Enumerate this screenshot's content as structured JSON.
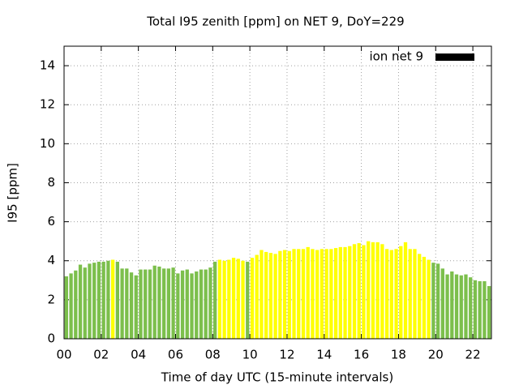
{
  "chart_data": {
    "type": "bar",
    "title": "Total I95 zenith [ppm] on NET 9, DoY=229",
    "xlabel": "Time of day UTC (15-minute intervals)",
    "ylabel": "I95 [ppm]",
    "legend": "top-right",
    "grid": true,
    "xlim": [
      0,
      23
    ],
    "ylim": [
      0,
      15
    ],
    "xticks": [
      {
        "value": 0,
        "label": "00"
      },
      {
        "value": 2,
        "label": "02"
      },
      {
        "value": 4,
        "label": "04"
      },
      {
        "value": 6,
        "label": "06"
      },
      {
        "value": 8,
        "label": "08"
      },
      10,
      12,
      14,
      16,
      18,
      20,
      22
    ],
    "yticks": [
      0,
      2,
      4,
      6,
      8,
      10,
      12,
      14
    ],
    "x": [
      0,
      0.25,
      0.5,
      0.75,
      1,
      1.25,
      1.5,
      1.75,
      2,
      2.25,
      2.5,
      2.75,
      3,
      3.25,
      3.5,
      3.75,
      4,
      4.25,
      4.5,
      4.75,
      5,
      5.25,
      5.5,
      5.75,
      6,
      6.25,
      6.5,
      6.75,
      7,
      7.25,
      7.5,
      7.75,
      8,
      8.25,
      8.5,
      8.75,
      9,
      9.25,
      9.5,
      9.75,
      10,
      10.25,
      10.5,
      10.75,
      11,
      11.25,
      11.5,
      11.75,
      12,
      12.25,
      12.5,
      12.75,
      13,
      13.25,
      13.5,
      13.75,
      14,
      14.25,
      14.5,
      14.75,
      15,
      15.25,
      15.5,
      15.75,
      16,
      16.25,
      16.5,
      16.75,
      17,
      17.25,
      17.5,
      17.75,
      18,
      18.25,
      18.5,
      18.75,
      19,
      19.25,
      19.5,
      19.75,
      20,
      20.25,
      20.5,
      20.75,
      21,
      21.25,
      21.5,
      21.75,
      22,
      22.25,
      22.5,
      22.75
    ],
    "series": [
      {
        "name": "ion net 9",
        "color": "#000000",
        "values": [
          3.2,
          3.35,
          3.5,
          3.8,
          3.65,
          3.85,
          3.9,
          3.95,
          3.95,
          4.0,
          4.05,
          3.95,
          3.6,
          3.6,
          3.4,
          3.25,
          3.55,
          3.55,
          3.55,
          3.75,
          3.7,
          3.6,
          3.6,
          3.65,
          3.35,
          3.5,
          3.55,
          3.35,
          3.45,
          3.55,
          3.55,
          3.65,
          3.95,
          4.05,
          4.0,
          4.05,
          4.15,
          4.1,
          4.0,
          3.95,
          4.15,
          4.3,
          4.55,
          4.45,
          4.4,
          4.35,
          4.5,
          4.55,
          4.5,
          4.6,
          4.6,
          4.6,
          4.7,
          4.6,
          4.55,
          4.6,
          4.6,
          4.6,
          4.65,
          4.7,
          4.7,
          4.75,
          4.85,
          4.9,
          4.8,
          5.0,
          4.95,
          4.95,
          4.85,
          4.6,
          4.55,
          4.6,
          4.75,
          4.95,
          4.6,
          4.6,
          4.35,
          4.2,
          4.05,
          3.9,
          3.85,
          3.6,
          3.3,
          3.45,
          3.3,
          3.25,
          3.3,
          3.15,
          3.0,
          2.95,
          2.95,
          2.7
        ],
        "colors": [
          "#7cbf4c",
          "#7cbf4c",
          "#7cbf4c",
          "#7cbf4c",
          "#7cbf4c",
          "#7cbf4c",
          "#7cbf4c",
          "#7cbf4c",
          "#7cbf4c",
          "#7cbf4c",
          "#ffff00",
          "#7cbf4c",
          "#7cbf4c",
          "#7cbf4c",
          "#7cbf4c",
          "#7cbf4c",
          "#7cbf4c",
          "#7cbf4c",
          "#7cbf4c",
          "#7cbf4c",
          "#7cbf4c",
          "#7cbf4c",
          "#7cbf4c",
          "#7cbf4c",
          "#7cbf4c",
          "#7cbf4c",
          "#7cbf4c",
          "#7cbf4c",
          "#7cbf4c",
          "#7cbf4c",
          "#7cbf4c",
          "#7cbf4c",
          "#7cbf4c",
          "#ffff00",
          "#ffff00",
          "#ffff00",
          "#ffff00",
          "#ffff00",
          "#ffff00",
          "#7cbf4c",
          "#ffff00",
          "#ffff00",
          "#ffff00",
          "#ffff00",
          "#ffff00",
          "#ffff00",
          "#ffff00",
          "#ffff00",
          "#ffff00",
          "#ffff00",
          "#ffff00",
          "#ffff00",
          "#ffff00",
          "#ffff00",
          "#ffff00",
          "#ffff00",
          "#ffff00",
          "#ffff00",
          "#ffff00",
          "#ffff00",
          "#ffff00",
          "#ffff00",
          "#ffff00",
          "#ffff00",
          "#ffff00",
          "#ffff00",
          "#ffff00",
          "#ffff00",
          "#ffff00",
          "#ffff00",
          "#ffff00",
          "#ffff00",
          "#ffff00",
          "#ffff00",
          "#ffff00",
          "#ffff00",
          "#ffff00",
          "#ffff00",
          "#ffff00",
          "#7cbf4c",
          "#7cbf4c",
          "#7cbf4c",
          "#7cbf4c",
          "#7cbf4c",
          "#7cbf4c",
          "#7cbf4c",
          "#7cbf4c",
          "#7cbf4c",
          "#7cbf4c",
          "#7cbf4c",
          "#7cbf4c",
          "#7cbf4c"
        ]
      }
    ]
  }
}
